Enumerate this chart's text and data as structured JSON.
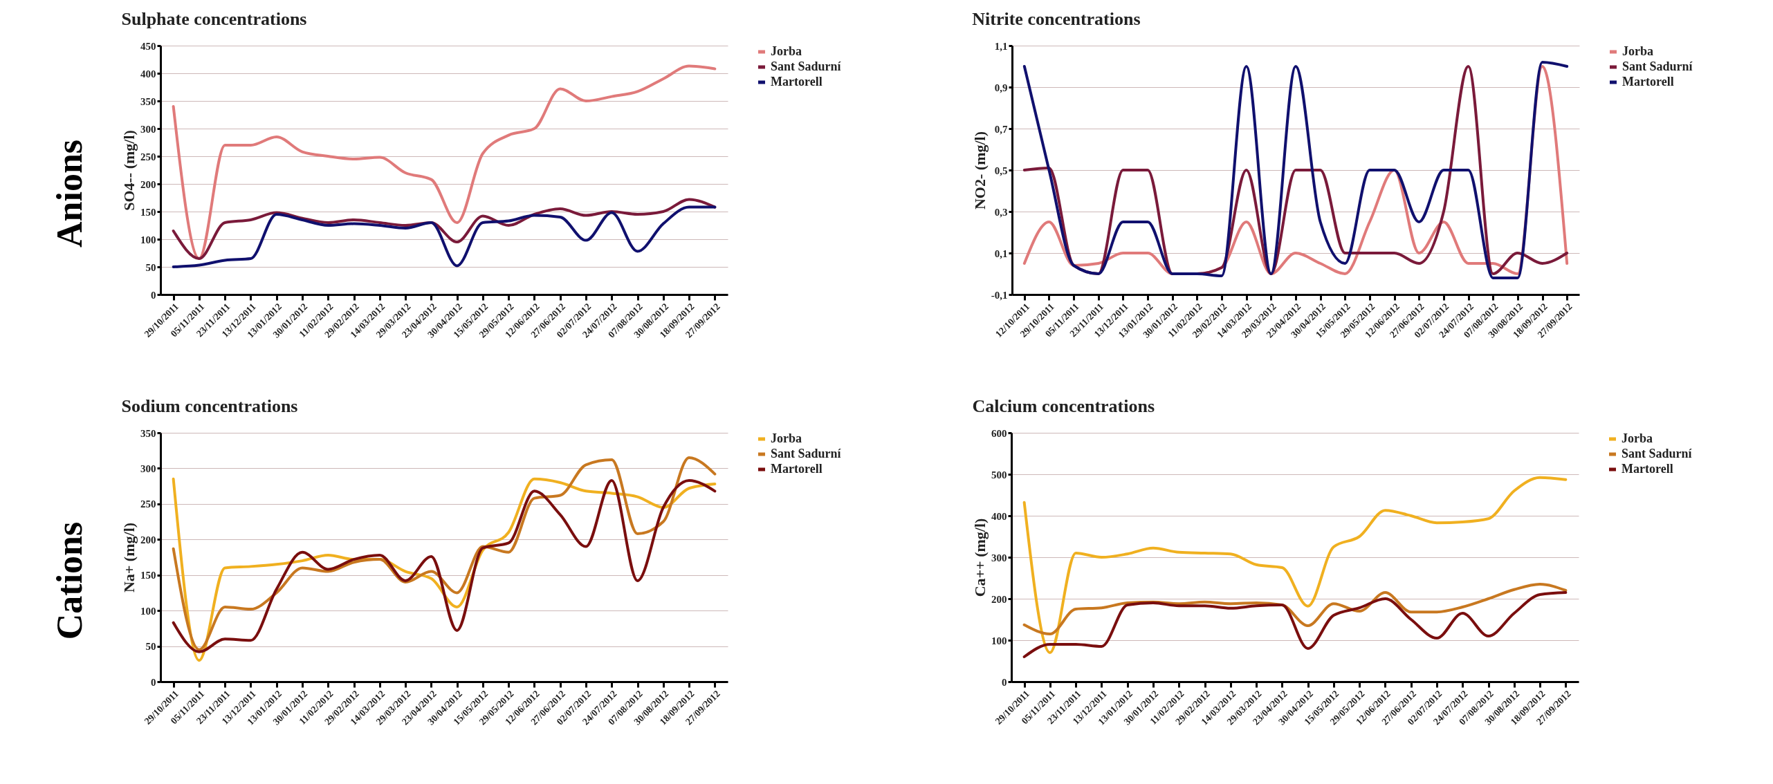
{
  "chart_data": [
    {
      "type": "line",
      "title": "Sulphate concentrations",
      "ylabel": "SO4-- (mg/l)",
      "annotations": [
        "Anions"
      ],
      "categories": [
        "29/10/2011",
        "05/11/2011",
        "23/11/2011",
        "13/12/2011",
        "13/01/2012",
        "30/01/2012",
        "11/02/2012",
        "29/02/2012",
        "14/03/2012",
        "29/03/2012",
        "23/04/2012",
        "30/04/2012",
        "15/05/2012",
        "29/05/2012",
        "12/06/2012",
        "27/06/2012",
        "02/07/2012",
        "24/07/2012",
        "07/08/2012",
        "30/08/2012",
        "18/09/2012",
        "27/09/2012"
      ],
      "ylim": [
        0,
        450
      ],
      "yticks": [
        0,
        50,
        100,
        150,
        200,
        250,
        300,
        350,
        400,
        450
      ],
      "grid": "y",
      "legend": "right",
      "series": [
        {
          "name": "Jorba",
          "color": "#e07a7a",
          "values": [
            340,
            65,
            270,
            270,
            285,
            258,
            250,
            245,
            248,
            220,
            208,
            130,
            255,
            288,
            300,
            372,
            350,
            358,
            367,
            390,
            413,
            408
          ]
        },
        {
          "name": "Sant Sadurní",
          "color": "#7a1a3a",
          "values": [
            115,
            65,
            130,
            135,
            148,
            138,
            130,
            135,
            130,
            125,
            130,
            95,
            142,
            125,
            145,
            155,
            143,
            150,
            145,
            150,
            172,
            158
          ]
        },
        {
          "name": "Martorell",
          "color": "#10106e",
          "values": [
            50,
            53,
            62,
            65,
            145,
            135,
            125,
            128,
            125,
            120,
            130,
            52,
            130,
            133,
            143,
            140,
            98,
            148,
            78,
            128,
            158,
            158
          ]
        }
      ]
    },
    {
      "type": "line",
      "title": "Nitrite concentrations",
      "ylabel": "NO2- (mg/l)",
      "categories": [
        "12/10/2011",
        "29/10/2011",
        "05/11/2011",
        "23/11/2011",
        "13/12/2011",
        "13/01/2012",
        "30/01/2012",
        "11/02/2012",
        "29/02/2012",
        "14/03/2012",
        "29/03/2012",
        "23/04/2012",
        "30/04/2012",
        "15/05/2012",
        "29/05/2012",
        "12/06/2012",
        "27/06/2012",
        "02/07/2012",
        "24/07/2012",
        "07/08/2012",
        "30/08/2012",
        "18/09/2012",
        "27/09/2012"
      ],
      "ylim": [
        -0.1,
        1.1
      ],
      "yticks": [
        {
          "value": -0.1,
          "label": "-0,1"
        },
        {
          "value": 0.1,
          "label": "0,1"
        },
        {
          "value": 0.3,
          "label": "0,3"
        },
        {
          "value": 0.5,
          "label": "0,5"
        },
        {
          "value": 0.7,
          "label": "0,7"
        },
        {
          "value": 0.9,
          "label": "0,9"
        },
        {
          "value": 1.1,
          "label": "1,1"
        }
      ],
      "grid": "y",
      "legend": "right",
      "series": [
        {
          "name": "Jorba",
          "color": "#e07a7a",
          "values": [
            0.05,
            0.25,
            0.04,
            0.05,
            0.1,
            0.1,
            0,
            0,
            0.03,
            0.25,
            0,
            0.1,
            0.05,
            0,
            0.25,
            0.5,
            0.1,
            0.25,
            0.05,
            0.05,
            0,
            1.0,
            0.05
          ]
        },
        {
          "name": "Sant Sadurní",
          "color": "#7a1a3a",
          "values": [
            0.5,
            0.51,
            0.04,
            0,
            0.5,
            0.5,
            0,
            0,
            0.03,
            0.5,
            0,
            0.5,
            0.5,
            0.1,
            0.1,
            0.1,
            0.05,
            0.3,
            1.0,
            0,
            0.1,
            0.05,
            0.1
          ]
        },
        {
          "name": "Martorell",
          "color": "#10106e",
          "values": [
            1.0,
            0.5,
            0.04,
            0,
            0.25,
            0.25,
            0,
            0,
            -0.01,
            1.0,
            0,
            1.0,
            0.25,
            0.05,
            0.5,
            0.5,
            0.25,
            0.5,
            0.5,
            -0.02,
            -0.02,
            1.02,
            1.0
          ]
        }
      ]
    },
    {
      "type": "line",
      "title": "Sodium concentrations",
      "ylabel": "Na+ (mg/l)",
      "annotations": [
        "Cations"
      ],
      "categories": [
        "29/10/2011",
        "05/11/2011",
        "23/11/2011",
        "13/12/2011",
        "13/01/2012",
        "30/01/2012",
        "11/02/2012",
        "29/02/2012",
        "14/03/2012",
        "29/03/2012",
        "23/04/2012",
        "30/04/2012",
        "15/05/2012",
        "29/05/2012",
        "12/06/2012",
        "27/06/2012",
        "02/07/2012",
        "24/07/2012",
        "07/08/2012",
        "30/08/2012",
        "18/09/2012",
        "27/09/2012"
      ],
      "ylim": [
        0,
        350
      ],
      "yticks": [
        0,
        50,
        100,
        150,
        200,
        250,
        300,
        350
      ],
      "grid": "y",
      "legend": "right",
      "series": [
        {
          "name": "Jorba",
          "color": "#f0b020",
          "values": [
            285,
            30,
            160,
            162,
            165,
            170,
            178,
            172,
            172,
            155,
            145,
            105,
            185,
            210,
            285,
            280,
            268,
            265,
            260,
            245,
            272,
            278
          ]
        },
        {
          "name": "Sant Sadurní",
          "color": "#c87820",
          "values": [
            187,
            45,
            105,
            102,
            125,
            160,
            155,
            168,
            172,
            140,
            155,
            125,
            190,
            182,
            258,
            262,
            305,
            312,
            208,
            225,
            315,
            292
          ]
        },
        {
          "name": "Martorell",
          "color": "#7a0e0e",
          "values": [
            83,
            42,
            60,
            58,
            130,
            182,
            158,
            172,
            178,
            142,
            176,
            72,
            188,
            195,
            268,
            235,
            190,
            283,
            142,
            245,
            283,
            268
          ]
        }
      ]
    },
    {
      "type": "line",
      "title": "Calcium concentrations",
      "ylabel": "Ca++ (mg/l)",
      "categories": [
        "29/10/2011",
        "05/11/2011",
        "23/11/2011",
        "13/12/2011",
        "13/01/2012",
        "30/01/2012",
        "11/02/2012",
        "29/02/2012",
        "14/03/2012",
        "29/03/2012",
        "23/04/2012",
        "30/04/2012",
        "15/05/2012",
        "29/05/2012",
        "12/06/2012",
        "27/06/2012",
        "02/07/2012",
        "24/07/2012",
        "07/08/2012",
        "30/08/2012",
        "18/09/2012",
        "27/09/2012"
      ],
      "ylim": [
        0,
        600
      ],
      "yticks": [
        0,
        100,
        200,
        300,
        400,
        500,
        600
      ],
      "grid": "y",
      "legend": "right",
      "series": [
        {
          "name": "Jorba",
          "color": "#f0b020",
          "values": [
            432,
            70,
            310,
            300,
            308,
            322,
            312,
            310,
            308,
            282,
            275,
            182,
            325,
            350,
            413,
            400,
            383,
            385,
            393,
            460,
            492,
            487
          ]
        },
        {
          "name": "Sant Sadurní",
          "color": "#c87820",
          "values": [
            137,
            115,
            175,
            178,
            190,
            192,
            188,
            192,
            188,
            190,
            185,
            135,
            188,
            170,
            215,
            168,
            168,
            180,
            200,
            222,
            235,
            220
          ]
        },
        {
          "name": "Martorell",
          "color": "#7a0e0e",
          "values": [
            60,
            90,
            90,
            85,
            185,
            190,
            183,
            183,
            177,
            183,
            185,
            80,
            160,
            178,
            200,
            150,
            105,
            165,
            110,
            165,
            210,
            215
          ]
        }
      ]
    }
  ]
}
